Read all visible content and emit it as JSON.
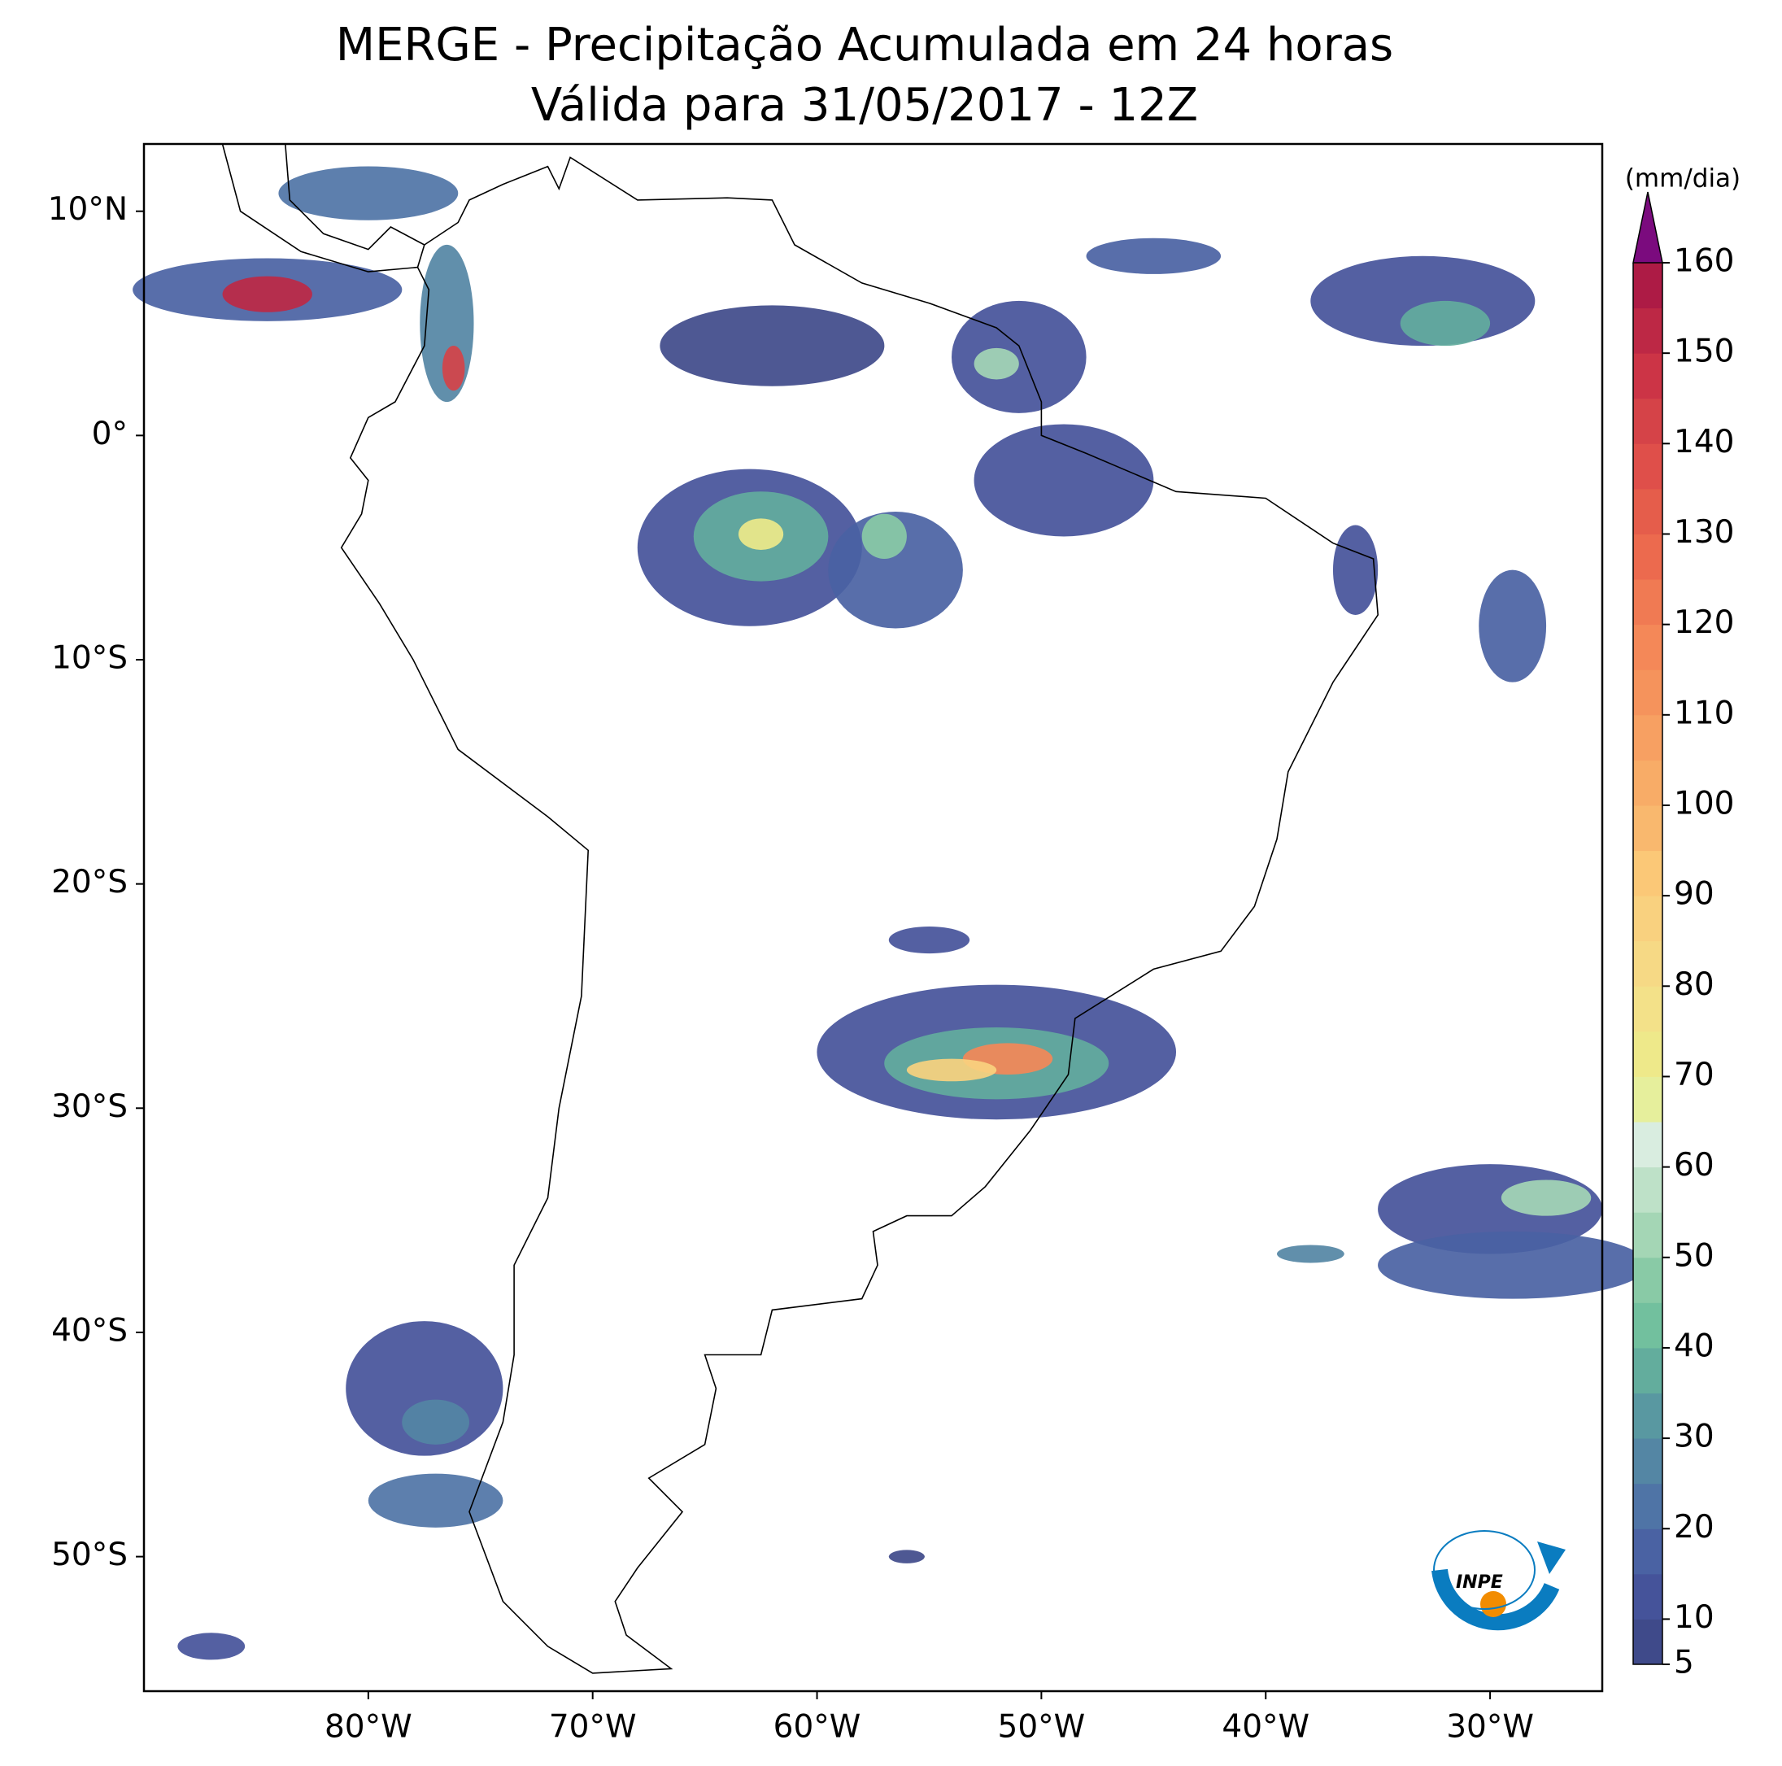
{
  "chart_data": {
    "type": "map",
    "title": "MERGE - Precipitação Acumulada em 24 horas",
    "subtitle": "Válida para 31/05/2017 - 12Z",
    "xlim": [
      -90,
      -25
    ],
    "xticks": [
      {
        "value": -80,
        "label": "80°W"
      },
      {
        "value": -70,
        "label": "70°W"
      },
      {
        "value": -60,
        "label": "60°W"
      },
      {
        "value": -50,
        "label": "50°W"
      },
      {
        "value": -40,
        "label": "40°W"
      },
      {
        "value": -30,
        "label": "30°W"
      }
    ],
    "ylim": [
      -56,
      13
    ],
    "yticks": [
      {
        "value": 10,
        "label": "10°N"
      },
      {
        "value": 0,
        "label": "0°"
      },
      {
        "value": -10,
        "label": "10°S"
      },
      {
        "value": -20,
        "label": "20°S"
      },
      {
        "value": -30,
        "label": "30°S"
      },
      {
        "value": -40,
        "label": "40°S"
      },
      {
        "value": -50,
        "label": "50°S"
      }
    ],
    "colorbar": {
      "label": "(mm/dia)",
      "lim": [
        5,
        160
      ],
      "ticks": [
        5,
        10,
        20,
        30,
        40,
        50,
        60,
        70,
        80,
        90,
        100,
        110,
        120,
        130,
        140,
        150,
        160
      ],
      "colors": [
        "#3f4a8a",
        "#45539a",
        "#4a62a3",
        "#4f74a6",
        "#5486a4",
        "#5998a1",
        "#63ad9d",
        "#72c09e",
        "#89caa6",
        "#a4d6b5",
        "#bee1c8",
        "#d9ede0",
        "#e6ef9c",
        "#eee98a",
        "#f3e189",
        "#f6d985",
        "#f9d17f",
        "#fbc877",
        "#f9b86e",
        "#f8ac67",
        "#f7a062",
        "#f5935c",
        "#f48858",
        "#f07a53",
        "#ec6a4e",
        "#e55d4b",
        "#df4f4a",
        "#d54348",
        "#cc3446",
        "#bd2845",
        "#ad1b45"
      ],
      "extend_color": "#7b0b7e"
    },
    "logo_text": "INPE"
  }
}
